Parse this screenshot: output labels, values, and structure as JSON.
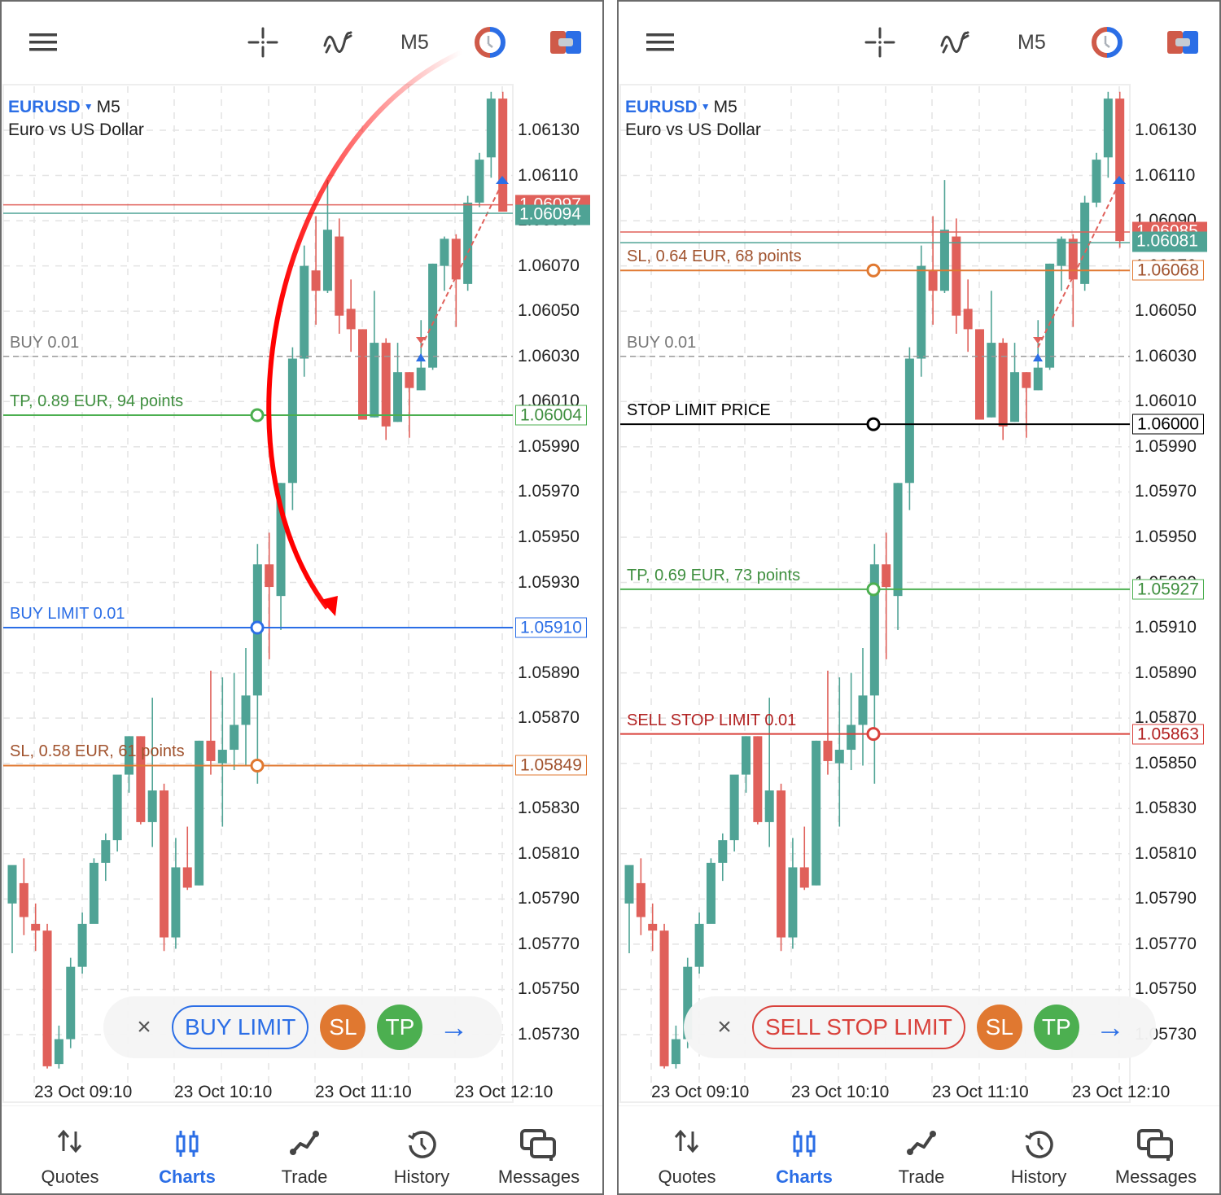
{
  "colors": {
    "bull": "#4fa395",
    "bear": "#e0605a",
    "accent": "#2b6ee6",
    "grid": "#e3e3e3",
    "tp": "#4caf50",
    "sl": "#e07830",
    "sell_order": "#d9413b"
  },
  "topbar": {
    "menu_icon": "hamburger-menu-icon",
    "crosshair_icon": "crosshair-icon",
    "indicators_icon": "indicators-icon",
    "timeframe": "M5",
    "trade_timer_icon": "one-click-trading-icon",
    "trade_panel_icon": "trade-panel-icon"
  },
  "chart_common": {
    "symbol": "EURUSD",
    "timeframe": "M5",
    "description": "Euro vs US Dollar",
    "y_ticks": [
      "1.06130",
      "1.06110",
      "1.06090",
      "1.06070",
      "1.06050",
      "1.06030",
      "1.06010",
      "1.05990",
      "1.05970",
      "1.05950",
      "1.05930",
      "1.05910",
      "1.05890",
      "1.05870",
      "1.05850",
      "1.05830",
      "1.05810",
      "1.05790",
      "1.05770",
      "1.05750",
      "1.05730"
    ],
    "x_ticks": [
      "23 Oct 09:10",
      "23 Oct 10:10",
      "23 Oct 11:10",
      "23 Oct 12:10"
    ],
    "position_label": "BUY 0.01",
    "position_price": 1.0603
  },
  "left_panel": {
    "bid_tag": "1.06097",
    "ask_tag": "1.06094",
    "tp_label": "TP, 0.89 EUR, 94 points",
    "tp_price": "1.06004",
    "order_label": "BUY LIMIT 0.01",
    "order_price": "1.05910",
    "sl_label": "SL, 0.58 EUR, 61 points",
    "sl_price": "1.05849",
    "hidden_ticks": [
      "1.06090",
      "1.06010"
    ],
    "order_bar": {
      "close": "×",
      "type": "BUY LIMIT",
      "sl": "SL",
      "tp": "TP",
      "next": "→"
    }
  },
  "right_panel": {
    "bid_tag": "1.06085",
    "ask_tag": "1.06081",
    "sl_label": "SL, 0.64 EUR, 68 points",
    "sl_price": "1.06068",
    "stop_limit_label": "STOP LIMIT PRICE",
    "stop_limit_price": "1.06000",
    "tp_label": "TP, 0.69 EUR, 73 points",
    "tp_price": "1.05927",
    "order_label": "SELL STOP LIMIT 0.01",
    "order_price": "1.05863",
    "hidden_ticks": [
      "1.06090",
      "1.05930",
      "1.05870"
    ],
    "order_bar": {
      "close": "×",
      "type": "SELL STOP LIMIT",
      "sl": "SL",
      "tp": "TP",
      "next": "→"
    }
  },
  "bottom_nav": [
    {
      "label": "Quotes",
      "icon": "quotes-arrows-icon",
      "active": false
    },
    {
      "label": "Charts",
      "icon": "charts-candles-icon",
      "active": true
    },
    {
      "label": "Trade",
      "icon": "trade-line-icon",
      "active": false
    },
    {
      "label": "History",
      "icon": "history-clock-icon",
      "active": false
    },
    {
      "label": "Messages",
      "icon": "messages-chat-icon",
      "active": false
    }
  ],
  "chart_data": {
    "type": "candlestick",
    "title": "EURUSD M5 - Euro vs US Dollar",
    "ylim": [
      1.0571,
      1.0615
    ],
    "x_ticks": [
      "23 Oct 09:10",
      "23 Oct 10:10",
      "23 Oct 11:10",
      "23 Oct 12:10"
    ],
    "candles": [
      [
        1.05788,
        1.058,
        1.05766,
        1.05805
      ],
      [
        1.05797,
        1.05808,
        1.05774,
        1.05782
      ],
      [
        1.05779,
        1.05788,
        1.05767,
        1.05776
      ],
      [
        1.05776,
        1.05779,
        1.05715,
        1.05716
      ],
      [
        1.05717,
        1.05734,
        1.05715,
        1.05728
      ],
      [
        1.05728,
        1.05764,
        1.05724,
        1.0576
      ],
      [
        1.0576,
        1.05784,
        1.05757,
        1.05779
      ],
      [
        1.05779,
        1.05808,
        1.05798,
        1.05806
      ],
      [
        1.05806,
        1.05819,
        1.05798,
        1.05816
      ],
      [
        1.05816,
        1.05844,
        1.05811,
        1.05845
      ],
      [
        1.05845,
        1.05862,
        1.05837,
        1.05862
      ],
      [
        1.05862,
        1.05862,
        1.05823,
        1.05824
      ],
      [
        1.05824,
        1.05879,
        1.05813,
        1.05838
      ],
      [
        1.05838,
        1.05841,
        1.05767,
        1.05773
      ],
      [
        1.05773,
        1.05817,
        1.05768,
        1.05804
      ],
      [
        1.05804,
        1.05822,
        1.05794,
        1.05795
      ],
      [
        1.05796,
        1.0586,
        1.05796,
        1.0586
      ],
      [
        1.0586,
        1.05891,
        1.05845,
        1.05851
      ],
      [
        1.0585,
        1.05888,
        1.05822,
        1.05856
      ],
      [
        1.05856,
        1.0589,
        1.05847,
        1.05867
      ],
      [
        1.05867,
        1.05901,
        1.05849,
        1.0588
      ],
      [
        1.0588,
        1.05947,
        1.05841,
        1.05938
      ],
      [
        1.05938,
        1.05952,
        1.05896,
        1.05928
      ],
      [
        1.05924,
        1.05974,
        1.05909,
        1.05974
      ],
      [
        1.05974,
        1.06034,
        1.05962,
        1.06029
      ],
      [
        1.06029,
        1.06079,
        1.06021,
        1.0607
      ],
      [
        1.06068,
        1.06092,
        1.06044,
        1.06059
      ],
      [
        1.06059,
        1.06108,
        1.06058,
        1.06086
      ],
      [
        1.06083,
        1.06091,
        1.0604,
        1.06048
      ],
      [
        1.06051,
        1.06064,
        1.06032,
        1.06042
      ],
      [
        1.06042,
        1.06042,
        1.06002,
        1.06002
      ],
      [
        1.06003,
        1.06059,
        1.06003,
        1.06036
      ],
      [
        1.06036,
        1.06038,
        1.05993,
        1.05999
      ],
      [
        1.06001,
        1.06036,
        1.06001,
        1.06023
      ],
      [
        1.06023,
        1.06023,
        1.05994,
        1.06016
      ],
      [
        1.06015,
        1.06046,
        1.06015,
        1.06025
      ],
      [
        1.06025,
        1.06071,
        1.06024,
        1.06071
      ],
      [
        1.0607,
        1.06083,
        1.06059,
        1.06082
      ],
      [
        1.06082,
        1.06084,
        1.06043,
        1.06064
      ],
      [
        1.06062,
        1.06101,
        1.06059,
        1.06098
      ],
      [
        1.06098,
        1.0612,
        1.06096,
        1.06117
      ],
      [
        1.06118,
        1.06147,
        1.06109,
        1.06144
      ],
      [
        1.06144,
        1.06147,
        1.06095,
        1.06094
      ]
    ],
    "candle_format": [
      "open",
      "high",
      "low",
      "close"
    ]
  }
}
